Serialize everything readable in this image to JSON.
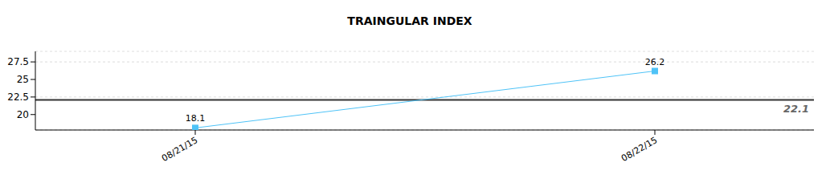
{
  "chart_data": {
    "type": "line",
    "title": "TRAINGULAR INDEX",
    "categories": [
      "08/21/15",
      "08/22/15"
    ],
    "values": [
      18.1,
      26.2
    ],
    "color": "#4fc3f7",
    "marker": "square",
    "ylim": [
      17.8,
      29
    ],
    "yticks": [
      20,
      22.5,
      25,
      27.5
    ],
    "grid": true,
    "data_labels": true,
    "reference_line": 22.1
  }
}
